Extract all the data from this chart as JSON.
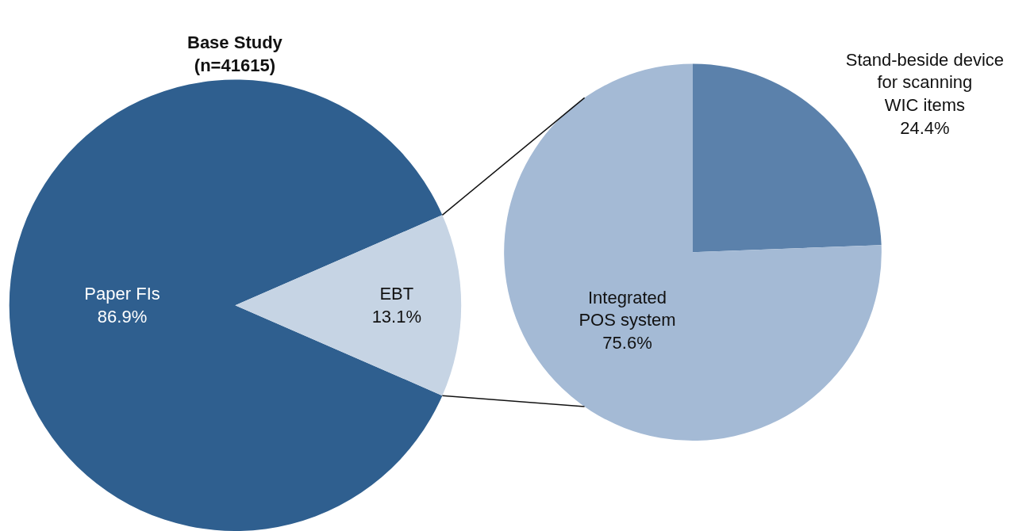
{
  "chart_data": [
    {
      "type": "pie",
      "title": "Base Study\n(n=41615)",
      "categories": [
        "Paper FIs",
        "EBT"
      ],
      "values": [
        86.9,
        13.1
      ],
      "colors": [
        "#2f5f8f",
        "#c6d4e4"
      ],
      "value_labels": [
        "86.9%",
        "13.1%"
      ],
      "legend": false
    },
    {
      "type": "pie",
      "categories": [
        "Stand-beside device\nfor scanning\nWIC items",
        "Integrated\nPOS system"
      ],
      "values": [
        24.4,
        75.6
      ],
      "colors": [
        "#5b81ab",
        "#a4bad5"
      ],
      "value_labels": [
        "24.4%",
        "75.6%"
      ],
      "legend": false
    }
  ]
}
